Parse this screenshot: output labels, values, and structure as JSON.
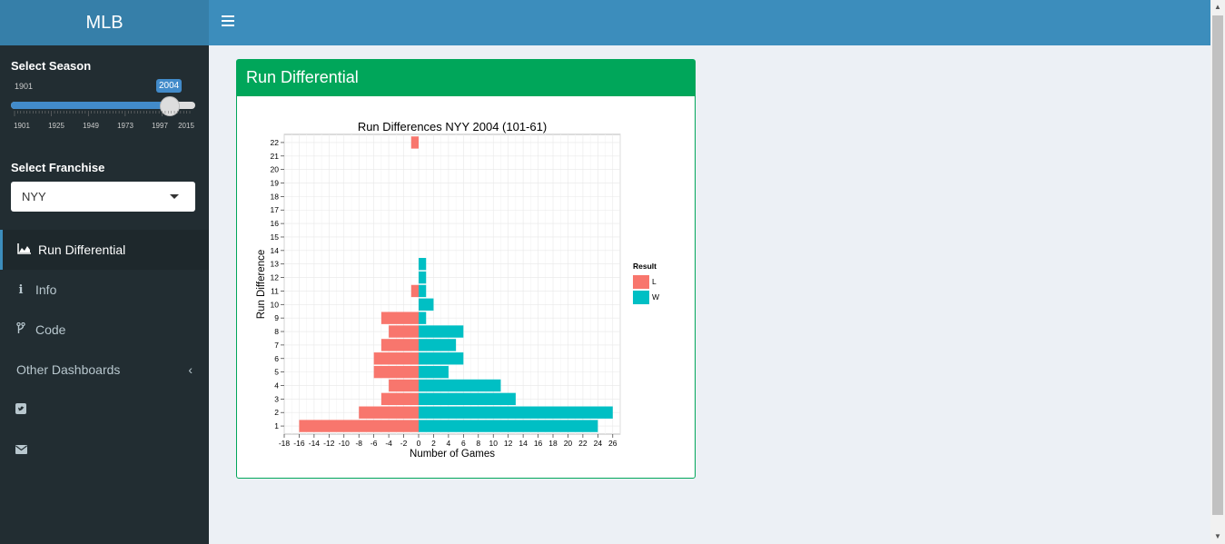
{
  "app": {
    "title": "MLB"
  },
  "sidebar": {
    "season": {
      "label": "Select Season",
      "min": "1901",
      "value": "2004",
      "fraction": 0.8614,
      "ticks": [
        "1901",
        "1925",
        "1949",
        "1973",
        "1997",
        "2015"
      ]
    },
    "franchise": {
      "label": "Select Franchise",
      "value": "NYY"
    },
    "menu": [
      {
        "label": "Run Differential",
        "icon": "area-chart-icon"
      },
      {
        "label": "Info",
        "icon": "info-icon"
      },
      {
        "label": "Code",
        "icon": "code-fork-icon"
      },
      {
        "label": "Other Dashboards",
        "icon": "chevron-left-icon"
      },
      {
        "label": "",
        "icon": "twitter-square-icon"
      },
      {
        "label": "",
        "icon": "envelope-icon"
      }
    ]
  },
  "box": {
    "title": "Run Differential"
  },
  "chart_data": {
    "type": "bar",
    "title": "Run Differences NYY 2004 (101-61)",
    "xlabel": "Number of Games",
    "ylabel": "Run Difference",
    "xlim": [
      -18,
      27
    ],
    "xticks": [
      -18,
      -16,
      -14,
      -12,
      -10,
      -8,
      -6,
      -4,
      -2,
      0,
      2,
      4,
      6,
      8,
      10,
      12,
      14,
      16,
      18,
      20,
      22,
      24,
      26
    ],
    "categories": [
      1,
      2,
      3,
      4,
      5,
      6,
      7,
      8,
      9,
      10,
      11,
      12,
      13,
      14,
      15,
      16,
      17,
      18,
      19,
      20,
      21,
      22
    ],
    "legend": {
      "title": "Result",
      "position": "right"
    },
    "grid": true,
    "series": [
      {
        "name": "L",
        "color": "#f8766d",
        "values": [
          -16,
          -8,
          -5,
          -4,
          -6,
          -6,
          -5,
          -4,
          -5,
          0,
          -1,
          0,
          0,
          0,
          0,
          0,
          0,
          0,
          0,
          0,
          0,
          -1
        ]
      },
      {
        "name": "W",
        "color": "#00bfc4",
        "values": [
          24,
          26,
          13,
          11,
          4,
          6,
          5,
          6,
          1,
          2,
          1,
          1,
          1,
          0,
          0,
          0,
          0,
          0,
          0,
          0,
          0,
          0
        ]
      }
    ]
  }
}
